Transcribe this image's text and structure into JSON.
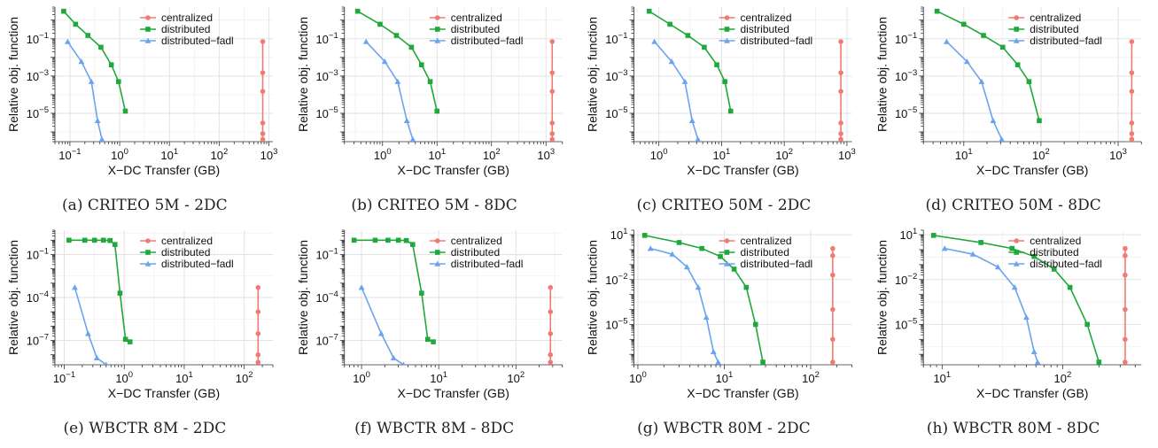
{
  "chart_data": [
    {
      "type": "line",
      "caption": "(a) CRITEO 5M - 2DC",
      "xlabel": "X−DC Transfer (GB)",
      "ylabel": "Relative obj. function",
      "xscale": "log",
      "yscale": "log",
      "xlim": [
        0.05,
        1200
      ],
      "ylim": [
        3e-07,
        5
      ],
      "xticks": [
        0.1,
        1,
        10,
        100,
        1000
      ],
      "xtick_labels": [
        "10^-1",
        "10^0",
        "10^1",
        "10^2",
        "10^3"
      ],
      "yticks": [
        1e-05,
        0.001,
        0.1
      ],
      "ytick_labels": [
        "10^-5",
        "10^-3",
        "10^-1"
      ],
      "legend_position": "top-right",
      "series": [
        {
          "name": "centralized",
          "color": "#f07b72",
          "marker": "circle",
          "x": [
            750,
            750,
            750,
            750,
            750,
            750
          ],
          "y": [
            0.07,
            0.0015,
            0.00015,
            3e-06,
            8e-07,
            4e-07
          ]
        },
        {
          "name": "distributed",
          "color": "#1fa83b",
          "marker": "square",
          "x": [
            0.075,
            0.13,
            0.23,
            0.42,
            0.68,
            0.95,
            1.3
          ],
          "y": [
            3,
            0.6,
            0.15,
            0.035,
            0.004,
            0.0005,
            1.3e-05
          ]
        },
        {
          "name": "distributed−fadl",
          "color": "#6aa3f0",
          "marker": "triangle",
          "x": [
            0.09,
            0.17,
            0.27,
            0.36,
            0.44
          ],
          "y": [
            0.07,
            0.006,
            0.0005,
            4e-06,
            4e-07
          ]
        }
      ]
    },
    {
      "type": "line",
      "caption": "(b) CRITEO 5M - 8DC",
      "xlabel": "X−DC Transfer (GB)",
      "ylabel": "Relative obj. function",
      "xscale": "log",
      "yscale": "log",
      "xlim": [
        0.2,
        2000
      ],
      "ylim": [
        3e-07,
        5
      ],
      "xticks": [
        1,
        10,
        100,
        1000
      ],
      "xtick_labels": [
        "10^0",
        "10^1",
        "10^2",
        "10^3"
      ],
      "yticks": [
        1e-05,
        0.001,
        0.1
      ],
      "ytick_labels": [
        "10^-5",
        "10^-3",
        "10^-1"
      ],
      "legend_position": "top-right",
      "series": [
        {
          "name": "centralized",
          "color": "#f07b72",
          "marker": "circle",
          "x": [
            1300,
            1300,
            1300,
            1300,
            1300,
            1300
          ],
          "y": [
            0.07,
            0.0015,
            0.00015,
            3e-06,
            8e-07,
            4e-07
          ]
        },
        {
          "name": "distributed",
          "color": "#1fa83b",
          "marker": "square",
          "x": [
            0.35,
            0.9,
            1.8,
            3.4,
            5.2,
            7.5,
            10
          ],
          "y": [
            3,
            0.6,
            0.15,
            0.035,
            0.004,
            0.0005,
            1.3e-05
          ]
        },
        {
          "name": "distributed−fadl",
          "color": "#6aa3f0",
          "marker": "triangle",
          "x": [
            0.5,
            1.1,
            1.9,
            2.8,
            3.6
          ],
          "y": [
            0.07,
            0.006,
            0.0005,
            4e-06,
            4e-07
          ]
        }
      ]
    },
    {
      "type": "line",
      "caption": "(c) CRITEO 50M - 2DC",
      "xlabel": "X−DC Transfer (GB)",
      "ylabel": "Relative obj. function",
      "xscale": "log",
      "yscale": "log",
      "xlim": [
        0.4,
        1200
      ],
      "ylim": [
        3e-07,
        5
      ],
      "xticks": [
        1,
        10,
        100,
        1000
      ],
      "xtick_labels": [
        "10^0",
        "10^1",
        "10^2",
        "10^3"
      ],
      "yticks": [
        1e-05,
        0.001,
        0.1
      ],
      "ytick_labels": [
        "10^-5",
        "10^-3",
        "10^-1"
      ],
      "legend_position": "top-right",
      "series": [
        {
          "name": "centralized",
          "color": "#f07b72",
          "marker": "circle",
          "x": [
            800,
            800,
            800,
            800,
            800,
            800
          ],
          "y": [
            0.07,
            0.0015,
            0.00015,
            3e-06,
            8e-07,
            4e-07
          ]
        },
        {
          "name": "distributed",
          "color": "#1fa83b",
          "marker": "square",
          "x": [
            0.7,
            1.5,
            2.9,
            5.3,
            8.4,
            11.3,
            14
          ],
          "y": [
            3,
            0.6,
            0.15,
            0.035,
            0.004,
            0.0005,
            1.3e-05
          ]
        },
        {
          "name": "distributed−fadl",
          "color": "#6aa3f0",
          "marker": "triangle",
          "x": [
            0.85,
            1.6,
            2.6,
            3.4,
            4.2
          ],
          "y": [
            0.07,
            0.006,
            0.0005,
            4e-06,
            4e-07
          ]
        }
      ]
    },
    {
      "type": "line",
      "caption": "(d) CRITEO 50M - 8DC",
      "xlabel": "X−DC Transfer (GB)",
      "ylabel": "Relative obj. function",
      "xscale": "log",
      "yscale": "log",
      "xlim": [
        3,
        2000
      ],
      "ylim": [
        3e-07,
        5
      ],
      "xticks": [
        10,
        100,
        1000
      ],
      "xtick_labels": [
        "10^1",
        "10^2",
        "10^3"
      ],
      "yticks": [
        1e-05,
        0.001,
        0.1
      ],
      "ytick_labels": [
        "10^-5",
        "10^-3",
        "10^-1"
      ],
      "legend_position": "top-right",
      "series": [
        {
          "name": "centralized",
          "color": "#f07b72",
          "marker": "circle",
          "x": [
            1500,
            1500,
            1500,
            1500,
            1500,
            1500
          ],
          "y": [
            0.07,
            0.0015,
            0.00015,
            3e-06,
            8e-07,
            4e-07
          ]
        },
        {
          "name": "distributed",
          "color": "#1fa83b",
          "marker": "square",
          "x": [
            4.5,
            10,
            18,
            32,
            50,
            70,
            95
          ],
          "y": [
            3,
            0.6,
            0.15,
            0.035,
            0.004,
            0.0005,
            4e-06
          ]
        },
        {
          "name": "distributed−fadl",
          "color": "#6aa3f0",
          "marker": "triangle",
          "x": [
            6,
            11,
            17,
            24,
            31
          ],
          "y": [
            0.07,
            0.006,
            0.0005,
            4e-06,
            4e-07
          ]
        }
      ]
    },
    {
      "type": "line",
      "caption": "(e) WBCTR 8M - 2DC",
      "xlabel": "X−DC Transfer (GB)",
      "ylabel": "Relative obj. function",
      "xscale": "log",
      "yscale": "log",
      "xlim": [
        0.07,
        300
      ],
      "ylim": [
        2e-09,
        5
      ],
      "xticks": [
        0.1,
        1,
        10,
        100
      ],
      "xtick_labels": [
        "10^-1",
        "10^0",
        "10^1",
        "10^2"
      ],
      "yticks": [
        1e-07,
        0.0001,
        0.1
      ],
      "ytick_labels": [
        "10^-7",
        "10^-4",
        "10^-1"
      ],
      "legend_position": "top-right",
      "series": [
        {
          "name": "centralized",
          "color": "#f07b72",
          "marker": "circle",
          "x": [
            170,
            170,
            170,
            170,
            170
          ],
          "y": [
            0.0005,
            1e-05,
            3e-07,
            1e-08,
            3e-09
          ]
        },
        {
          "name": "distributed",
          "color": "#1fa83b",
          "marker": "square",
          "x": [
            0.12,
            0.22,
            0.32,
            0.45,
            0.58,
            0.7,
            0.85,
            1.05,
            1.25
          ],
          "y": [
            1,
            1,
            1,
            1,
            0.95,
            0.5,
            0.0002,
            1.2e-07,
            8e-08
          ]
        },
        {
          "name": "distributed−fadl",
          "color": "#6aa3f0",
          "marker": "triangle",
          "x": [
            0.15,
            0.25,
            0.35,
            0.5
          ],
          "y": [
            0.0005,
            3e-07,
            6e-09,
            2e-09
          ]
        }
      ]
    },
    {
      "type": "line",
      "caption": "(f) WBCTR 8M - 8DC",
      "xlabel": "X−DC Transfer (GB)",
      "ylabel": "Relative obj. function",
      "xscale": "log",
      "yscale": "log",
      "xlim": [
        0.6,
        400
      ],
      "ylim": [
        2e-09,
        5
      ],
      "xticks": [
        1,
        10,
        100
      ],
      "xtick_labels": [
        "10^0",
        "10^1",
        "10^2"
      ],
      "yticks": [
        1e-07,
        0.0001,
        0.1
      ],
      "ytick_labels": [
        "10^-7",
        "10^-4",
        "10^-1"
      ],
      "legend_position": "top-right",
      "series": [
        {
          "name": "centralized",
          "color": "#f07b72",
          "marker": "circle",
          "x": [
            280,
            280,
            280,
            280,
            280
          ],
          "y": [
            0.0005,
            1e-05,
            3e-07,
            1e-08,
            3e-09
          ]
        },
        {
          "name": "distributed",
          "color": "#1fa83b",
          "marker": "square",
          "x": [
            0.8,
            1.5,
            2.2,
            3,
            3.8,
            4.6,
            6,
            7.2,
            8.5
          ],
          "y": [
            1,
            1,
            1,
            1,
            0.95,
            0.5,
            0.0002,
            1.2e-07,
            8e-08
          ]
        },
        {
          "name": "distributed−fadl",
          "color": "#6aa3f0",
          "marker": "triangle",
          "x": [
            1,
            1.8,
            2.6,
            3.5
          ],
          "y": [
            0.0005,
            3e-07,
            6e-09,
            2e-09
          ]
        }
      ]
    },
    {
      "type": "line",
      "caption": "(g) WBCTR 80M - 2DC",
      "xlabel": "X−DC Transfer (GB)",
      "ylabel": "Relative obj. function",
      "xscale": "log",
      "yscale": "log",
      "xlim": [
        0.9,
        300
      ],
      "ylim": [
        2e-08,
        20
      ],
      "xticks": [
        1,
        10,
        100
      ],
      "xtick_labels": [
        "10^0",
        "10^1",
        "10^2"
      ],
      "yticks": [
        1e-05,
        0.01,
        10
      ],
      "ytick_labels": [
        "10^-5",
        "10^-2",
        "10^1"
      ],
      "legend_position": "top-right",
      "series": [
        {
          "name": "centralized",
          "color": "#f07b72",
          "marker": "circle",
          "x": [
            180,
            180,
            180,
            180,
            180,
            180
          ],
          "y": [
            1.2,
            0.4,
            0.02,
            0.0001,
            1e-06,
            3e-08
          ]
        },
        {
          "name": "distributed",
          "color": "#1fa83b",
          "marker": "square",
          "x": [
            1.2,
            3,
            5.5,
            9,
            13,
            18,
            23,
            28
          ],
          "y": [
            9,
            3,
            1.2,
            0.35,
            0.05,
            0.003,
            1e-05,
            3e-08
          ]
        },
        {
          "name": "distributed−fadl",
          "color": "#6aa3f0",
          "marker": "triangle",
          "x": [
            1.4,
            2.5,
            3.7,
            5,
            6.2,
            7.5,
            8.5
          ],
          "y": [
            1.2,
            0.5,
            0.07,
            0.003,
            3e-05,
            1.5e-07,
            3e-08
          ]
        }
      ]
    },
    {
      "type": "line",
      "caption": "(h) WBCTR 80M - 8DC",
      "xlabel": "X−DC Transfer (GB)",
      "ylabel": "Relative obj. function",
      "xscale": "log",
      "yscale": "log",
      "xlim": [
        7,
        450
      ],
      "ylim": [
        2e-08,
        20
      ],
      "xticks": [
        10,
        100
      ],
      "xtick_labels": [
        "10^1",
        "10^2"
      ],
      "yticks": [
        1e-05,
        0.01,
        10
      ],
      "ytick_labels": [
        "10^-5",
        "10^-2",
        "10^1"
      ],
      "legend_position": "top-right",
      "series": [
        {
          "name": "centralized",
          "color": "#f07b72",
          "marker": "circle",
          "x": [
            330,
            330,
            330,
            330,
            330,
            330
          ],
          "y": [
            1.2,
            0.4,
            0.02,
            0.0001,
            1e-06,
            3e-08
          ]
        },
        {
          "name": "distributed",
          "color": "#1fa83b",
          "marker": "square",
          "x": [
            8.5,
            21,
            38,
            58,
            85,
            115,
            160,
            200
          ],
          "y": [
            9,
            3,
            1.2,
            0.35,
            0.05,
            0.003,
            1e-05,
            3e-08
          ]
        },
        {
          "name": "distributed−fadl",
          "color": "#6aa3f0",
          "marker": "triangle",
          "x": [
            10.5,
            18,
            29,
            40,
            50,
            58,
            62
          ],
          "y": [
            1.2,
            0.5,
            0.07,
            0.003,
            3e-05,
            1.5e-07,
            3e-08
          ]
        }
      ]
    }
  ]
}
